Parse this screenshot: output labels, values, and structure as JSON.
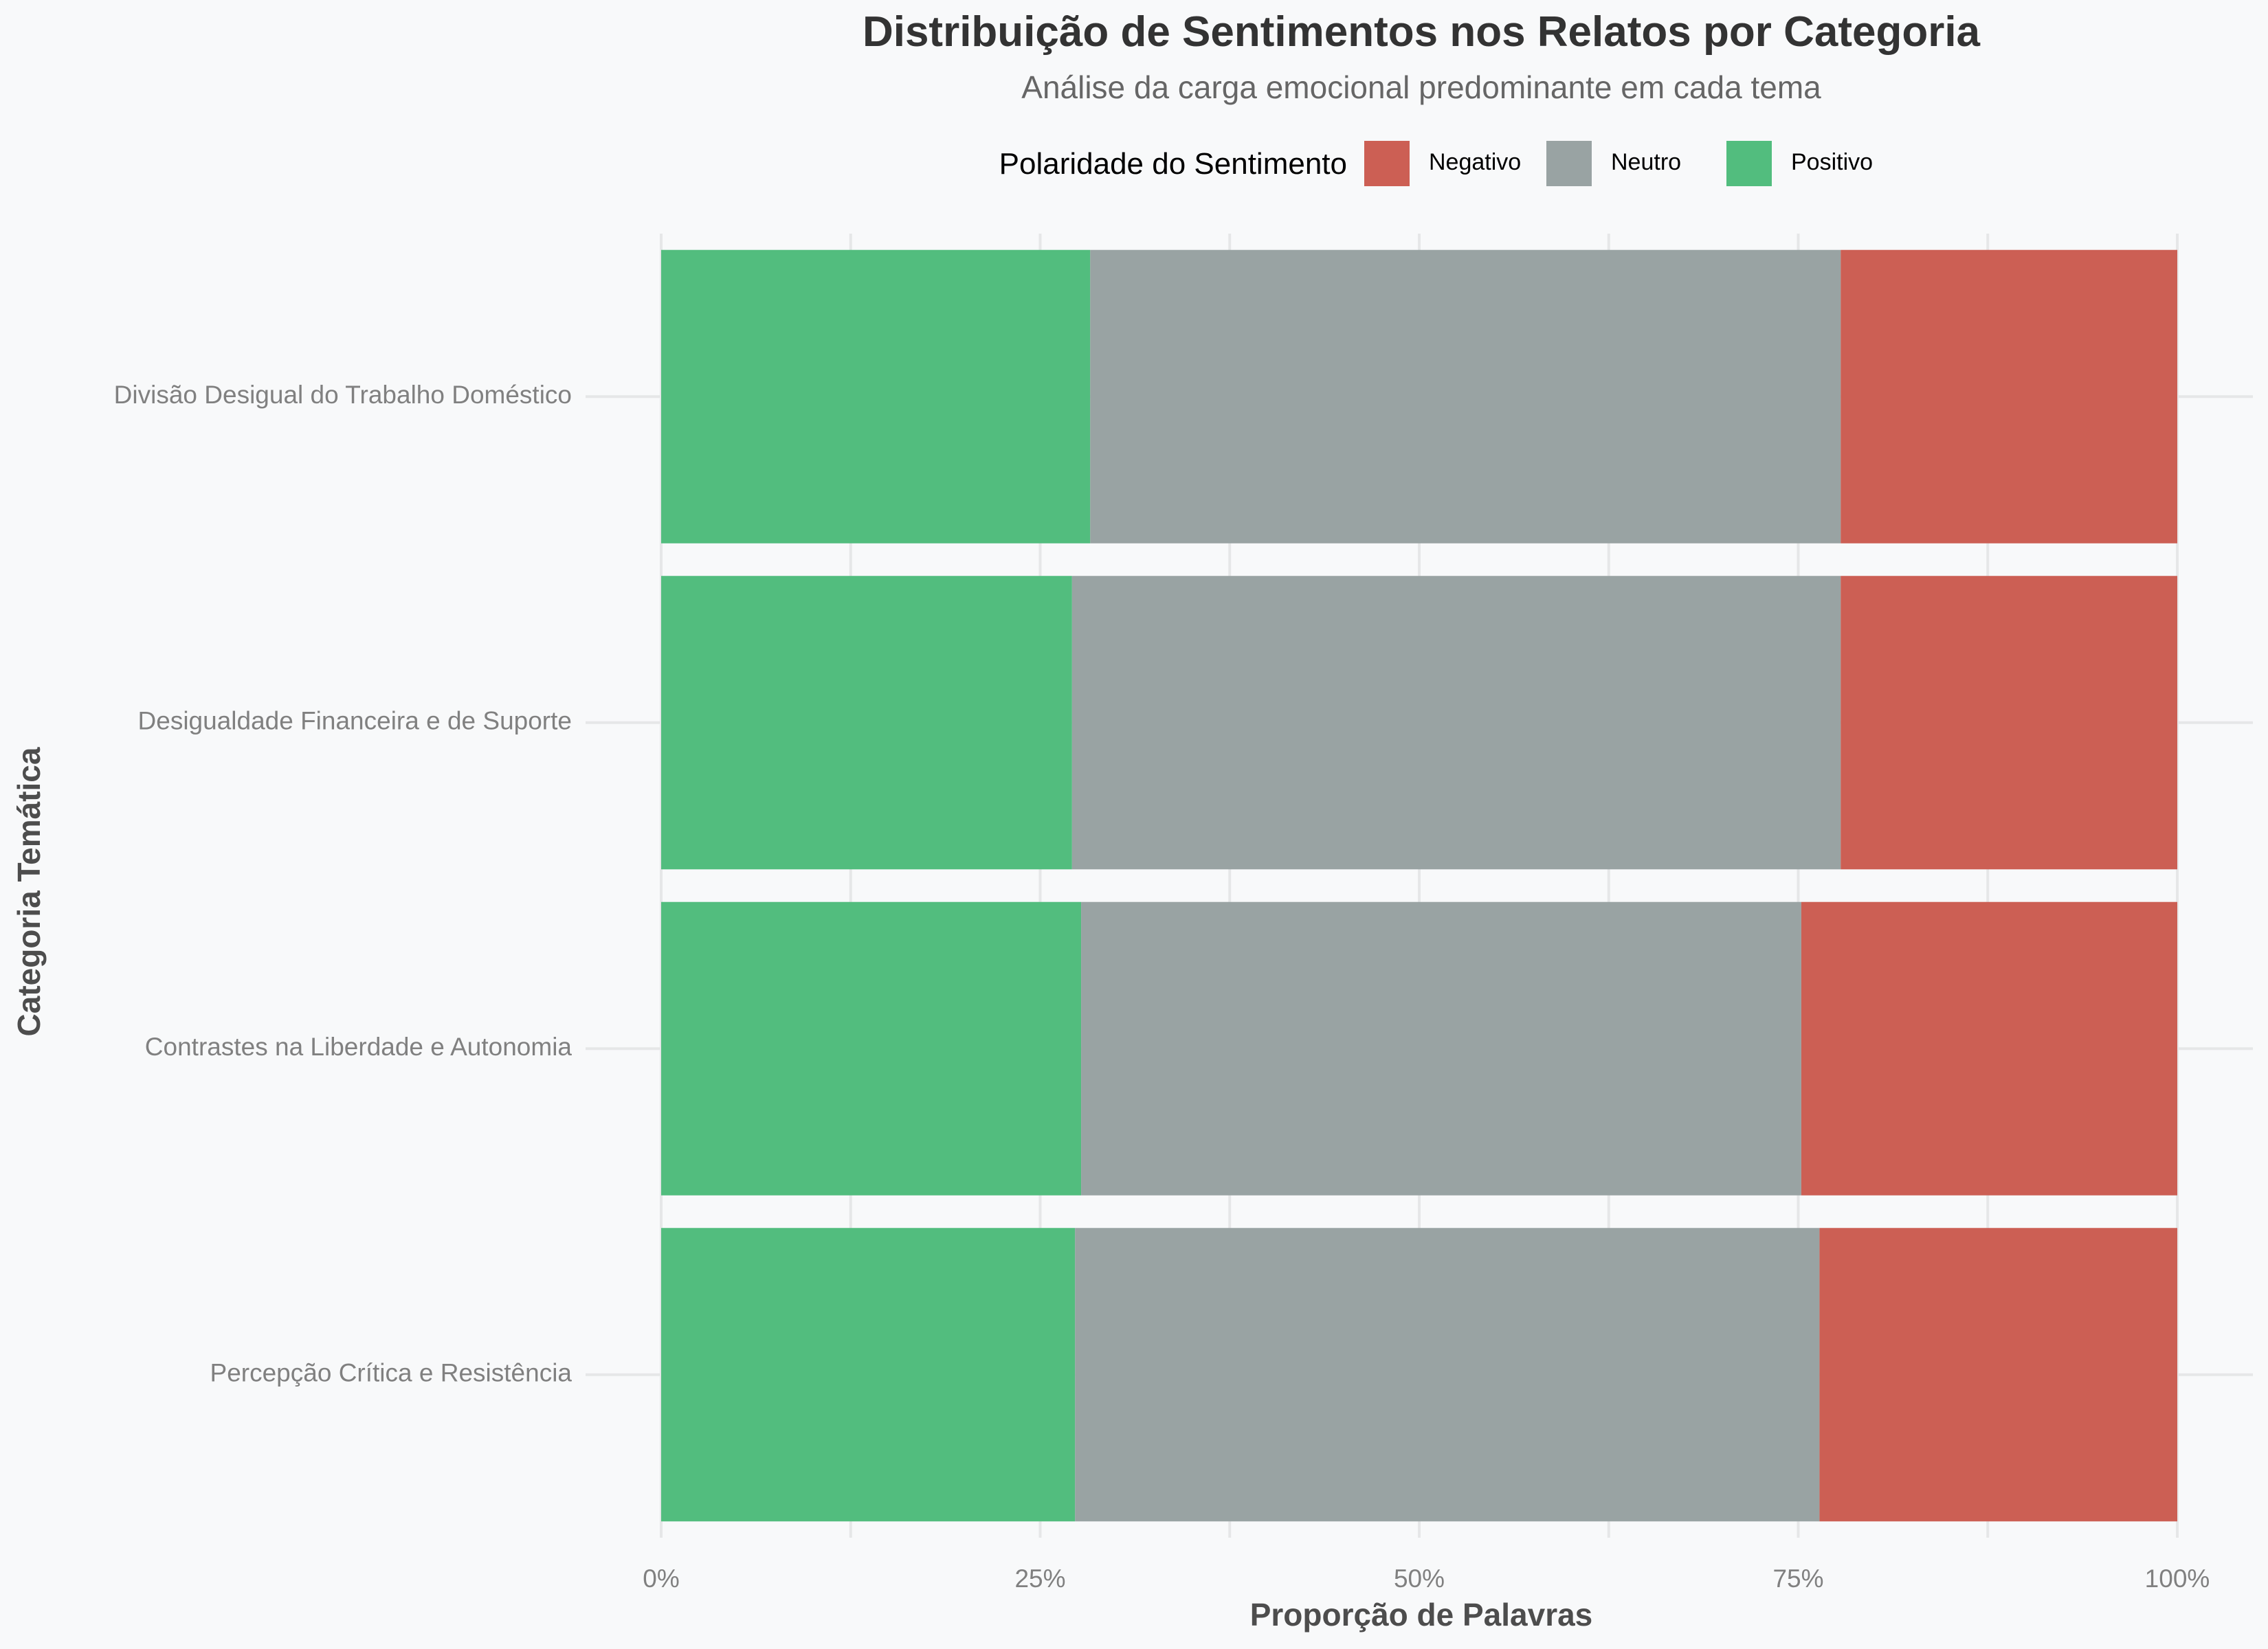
{
  "chart_data": {
    "type": "bar",
    "orientation": "horizontal",
    "stacked": true,
    "normalized": true,
    "title": "Distribuição de Sentimentos nos Relatos por Categoria",
    "subtitle": "Análise da carga emocional predominante em cada tema",
    "xlabel": "Proporção de Palavras",
    "ylabel": "Categoria Temática",
    "xlim": [
      0,
      1
    ],
    "x_ticks": [
      {
        "value": 0,
        "label": "0%"
      },
      {
        "value": 0.25,
        "label": "25%"
      },
      {
        "value": 0.5,
        "label": "50%"
      },
      {
        "value": 0.75,
        "label": "75%"
      },
      {
        "value": 1,
        "label": "100%"
      }
    ],
    "grid": true,
    "legend": {
      "title": "Polaridade do Sentimento",
      "position": "top"
    },
    "categories": [
      "Divisão Desigual do Trabalho Doméstico",
      "Desigualdade Financeira e de Suporte",
      "Contrastes na Liberdade e Autonomia",
      "Percepção Crítica e Resistência"
    ],
    "series": [
      {
        "name": "Positivo",
        "color": "#52bd7e",
        "values": [
          0.283,
          0.271,
          0.277,
          0.273
        ]
      },
      {
        "name": "Neutro",
        "color": "#99a3a3",
        "values": [
          0.495,
          0.507,
          0.475,
          0.491
        ]
      },
      {
        "name": "Negativo",
        "color": "#cc5f54",
        "values": [
          0.222,
          0.222,
          0.248,
          0.236
        ]
      }
    ],
    "legend_order": [
      "Negativo",
      "Neutro",
      "Positivo"
    ]
  }
}
